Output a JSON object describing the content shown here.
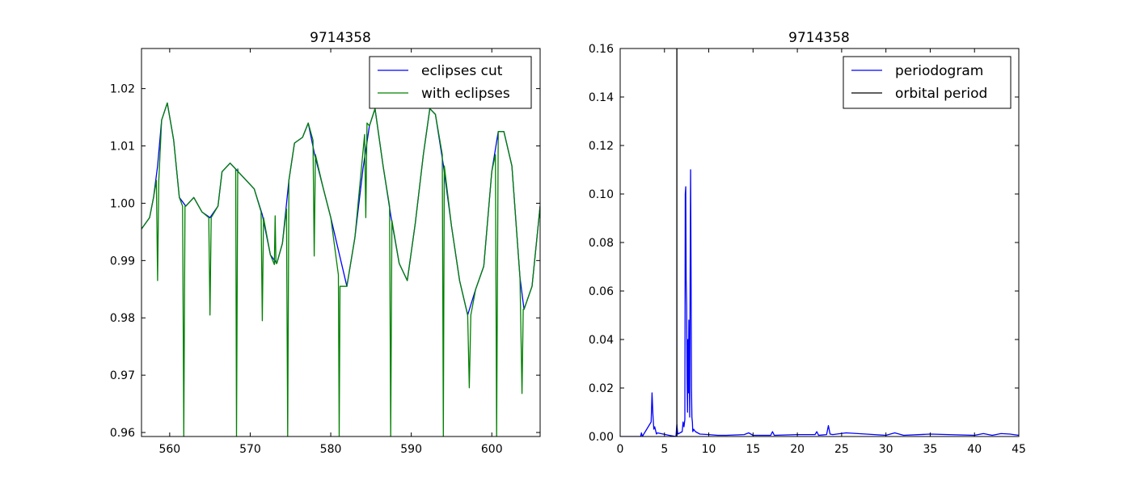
{
  "chart_data": [
    {
      "type": "line",
      "title": "9714358",
      "xlabel": "",
      "ylabel": "",
      "xlim": [
        556.5,
        606
      ],
      "ylim": [
        0.9593,
        1.027
      ],
      "xticks": [
        "560",
        "570",
        "580",
        "590",
        "600"
      ],
      "yticks": [
        "0.96",
        "0.97",
        "0.98",
        "0.99",
        "1.00",
        "1.01",
        "1.02"
      ],
      "grid": false,
      "legend_position": "top-right",
      "series": [
        {
          "name": "eclipses cut",
          "color": "#0000ff",
          "x": [
            556.5,
            557.5,
            558.0,
            558.5,
            559.0,
            559.7,
            560.5,
            561.2,
            562.0,
            563.0,
            564.0,
            565.0,
            566.0,
            566.5,
            567.5,
            568.5,
            569.5,
            570.5,
            571.5,
            572.5,
            573.3,
            574.0,
            574.8,
            575.5,
            576.5,
            577.2,
            578.0,
            579.0,
            580.0,
            581.0,
            582.0,
            583.0,
            584.0,
            584.8,
            585.5,
            586.5,
            587.5,
            588.5,
            589.5,
            590.5,
            591.5,
            592.3,
            593.0,
            594.0,
            595.0,
            596.0,
            597.0,
            598.0,
            599.0,
            600.0,
            600.8,
            601.5,
            602.5,
            603.5,
            604.0,
            605.0,
            606.0
          ],
          "y": [
            0.9955,
            0.9975,
            1.001,
            1.0065,
            1.0145,
            1.0175,
            1.011,
            1.001,
            0.9995,
            1.001,
            0.9985,
            0.9975,
            0.9995,
            1.0055,
            1.007,
            1.0055,
            1.004,
            1.0025,
            0.998,
            0.991,
            0.9895,
            0.993,
            1.004,
            1.0105,
            1.0115,
            1.014,
            1.0085,
            1.003,
            0.9975,
            0.9915,
            0.9855,
            0.994,
            1.006,
            1.0135,
            1.0165,
            1.0065,
            0.9975,
            0.9895,
            0.9865,
            0.9965,
            1.0085,
            1.0165,
            1.0155,
            1.0065,
            0.996,
            0.9865,
            0.9805,
            0.985,
            0.989,
            1.0055,
            1.0125,
            1.0125,
            1.0065,
            0.987,
            0.9815,
            0.9855,
            0.9995
          ]
        },
        {
          "name": "with eclipses",
          "color": "#008000",
          "x": [
            556.5,
            557.5,
            558.0,
            558.35,
            558.5,
            558.65,
            559.0,
            559.7,
            560.5,
            561.2,
            561.6,
            561.75,
            561.9,
            562.0,
            563.0,
            564.0,
            564.85,
            565.0,
            565.15,
            566.0,
            566.5,
            567.5,
            568.2,
            568.3,
            568.45,
            568.5,
            569.5,
            570.5,
            571.35,
            571.5,
            571.65,
            572.5,
            573.0,
            573.1,
            573.2,
            573.3,
            574.0,
            574.5,
            574.65,
            574.8,
            575.5,
            576.5,
            577.2,
            577.8,
            577.95,
            578.1,
            579.0,
            580.0,
            580.95,
            581.05,
            581.15,
            582.0,
            583.0,
            584.2,
            584.35,
            584.5,
            584.8,
            585.5,
            586.5,
            587.3,
            587.45,
            587.6,
            588.5,
            589.5,
            590.5,
            591.5,
            592.3,
            593.0,
            593.85,
            593.98,
            594.1,
            595.0,
            596.0,
            597.0,
            597.2,
            597.4,
            598.0,
            599.0,
            600.0,
            600.45,
            600.6,
            600.8,
            601.5,
            602.5,
            603.5,
            603.75,
            603.9,
            604.0,
            605.0,
            606.0
          ],
          "y": [
            0.9955,
            0.9975,
            1.001,
            1.004,
            0.9865,
            1.004,
            1.0145,
            1.0175,
            1.011,
            1.001,
            0.9995,
            0.9593,
            0.9995,
            0.9995,
            1.001,
            0.9985,
            0.9975,
            0.9805,
            0.9975,
            0.9995,
            1.0055,
            1.007,
            1.006,
            0.9593,
            1.006,
            1.0055,
            1.004,
            1.0025,
            0.9985,
            0.9795,
            0.9975,
            0.991,
            0.9893,
            0.9978,
            0.9895,
            0.9895,
            0.993,
            0.999,
            0.9593,
            1.004,
            1.0105,
            1.0115,
            1.014,
            1.011,
            0.9908,
            1.0085,
            1.003,
            0.9975,
            0.9875,
            0.9593,
            0.9855,
            0.9855,
            0.994,
            1.012,
            0.9975,
            1.014,
            1.0135,
            1.0165,
            1.0065,
            0.9995,
            0.9593,
            0.997,
            0.9895,
            0.9865,
            0.9965,
            1.0085,
            1.0165,
            1.0155,
            1.0085,
            0.9593,
            1.0065,
            0.996,
            0.9865,
            0.9805,
            0.9678,
            0.9805,
            0.985,
            0.989,
            1.0055,
            1.0085,
            0.9593,
            1.0125,
            1.0125,
            1.0065,
            0.987,
            0.9668,
            0.9815,
            0.9815,
            0.9855,
            0.9995
          ]
        }
      ]
    },
    {
      "type": "line",
      "title": "9714358",
      "xlabel": "",
      "ylabel": "",
      "xlim": [
        0,
        45
      ],
      "ylim": [
        0,
        0.16
      ],
      "xticks": [
        "0",
        "5",
        "10",
        "15",
        "20",
        "25",
        "30",
        "35",
        "40",
        "45"
      ],
      "yticks": [
        "0.00",
        "0.02",
        "0.04",
        "0.06",
        "0.08",
        "0.10",
        "0.12",
        "0.14",
        "0.16"
      ],
      "grid": false,
      "legend_position": "top-right",
      "series": [
        {
          "name": "periodogram",
          "color": "#0000ff",
          "x": [
            0,
            2.3,
            2.4,
            2.5,
            3.5,
            3.6,
            3.7,
            3.8,
            3.9,
            4.1,
            4.2,
            5.5,
            6.3,
            6.4,
            6.5,
            7.0,
            7.1,
            7.2,
            7.3,
            7.35,
            7.4,
            7.45,
            7.5,
            7.55,
            7.6,
            7.65,
            7.7,
            7.75,
            7.8,
            7.85,
            7.9,
            7.95,
            8.0,
            8.05,
            8.1,
            8.15,
            8.2,
            8.3,
            8.5,
            9.0,
            10.0,
            11.0,
            12.0,
            14.0,
            14.5,
            15.0,
            17.0,
            17.2,
            17.4,
            20.0,
            22.0,
            22.2,
            22.4,
            23.3,
            23.5,
            23.7,
            24.0,
            25.5,
            30.0,
            31.0,
            32.0,
            35.0,
            40.0,
            41.0,
            42.0,
            43.0,
            44.0,
            45.0
          ],
          "y": [
            0,
            0,
            0.0015,
            0,
            0.006,
            0.018,
            0.009,
            0.003,
            0.004,
            0.001,
            0.0015,
            0.0005,
            0,
            0.005,
            0.001,
            0.002,
            0.006,
            0.004,
            0.007,
            0.1,
            0.103,
            0.065,
            0.054,
            0.025,
            0.01,
            0.04,
            0.018,
            0.048,
            0.022,
            0.008,
            0.065,
            0.11,
            0.074,
            0.02,
            0.008,
            0.006,
            0.002,
            0.003,
            0.002,
            0.001,
            0.0008,
            0.0005,
            0.0005,
            0.0008,
            0.0015,
            0.0005,
            0.0005,
            0.002,
            0.0005,
            0.0008,
            0.0008,
            0.002,
            0.0005,
            0.0008,
            0.0045,
            0.001,
            0.0008,
            0.0015,
            0.0005,
            0.0015,
            0.0005,
            0.001,
            0.0005,
            0.0012,
            0.0005,
            0.0012,
            0.001,
            0.0005
          ]
        },
        {
          "name": "orbital period",
          "color": "#000000",
          "vline_x": 6.4
        }
      ]
    }
  ]
}
